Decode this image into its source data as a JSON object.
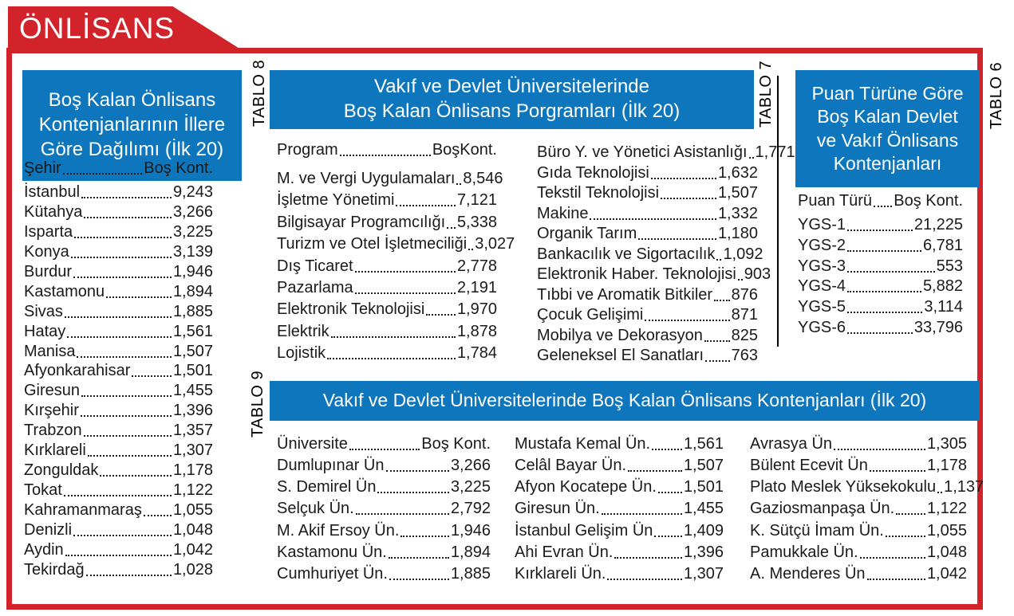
{
  "banner": {
    "title": "ÖNLİSANS"
  },
  "colors": {
    "red": "#d2232a",
    "blue": "#0e76bd",
    "text": "#1a1a1a"
  },
  "tables": {
    "cities": {
      "title": "Boş Kalan Önlisans\nKontenjanlarının İllere\nGöre Dağılımı (İlk 20)",
      "col_header": {
        "name": "Şehir",
        "value": "Boş Kont."
      },
      "rows": [
        [
          "İstanbul",
          "9,243"
        ],
        [
          "Kütahya",
          "3,266"
        ],
        [
          "Isparta",
          "3,225"
        ],
        [
          "Konya",
          "3,139"
        ],
        [
          "Burdur",
          "1,946"
        ],
        [
          "Kastamonu",
          "1,894"
        ],
        [
          "Sivas",
          "1,885"
        ],
        [
          "Hatay",
          "1,561"
        ],
        [
          "Manisa",
          "1,507"
        ],
        [
          "Afyonkarahisar",
          "1,501"
        ],
        [
          "Giresun",
          "1,455"
        ],
        [
          "Kırşehir",
          "1,396"
        ],
        [
          "Trabzon",
          "1,357"
        ],
        [
          "Kırklareli",
          "1,307"
        ],
        [
          "Zonguldak",
          "1,178"
        ],
        [
          "Tokat",
          "1,122"
        ],
        [
          "Kahramanmaraş",
          "1,055"
        ],
        [
          "Denizli",
          "1,048"
        ],
        [
          "Aydin",
          "1,042"
        ],
        [
          "Tekirdağ",
          "1,028"
        ]
      ]
    },
    "programs": {
      "tablo_label": "TABLO 8",
      "title": "Vakıf ve Devlet Üniversitelerinde\nBoş Kalan Önlisans Porgramları (İlk 20)",
      "col_header": {
        "name": "Program",
        "value": "BoşKont."
      },
      "left_rows": [
        [
          "M. ve Vergi Uygulamaları",
          "8,546"
        ],
        [
          "İşletme Yönetimi",
          "7,121"
        ],
        [
          "Bilgisayar Programcılığı",
          "5,338"
        ],
        [
          "Turizm ve Otel İşletmeciliği",
          "3,027"
        ],
        [
          "Dış Ticaret",
          "2,778"
        ],
        [
          "Pazarlama",
          "2,191"
        ],
        [
          "Elektronik Teknolojisi",
          "1,970"
        ],
        [
          "Elektrik",
          "1,878"
        ],
        [
          "Lojistik",
          "1,784"
        ]
      ],
      "right_rows": [
        [
          "Büro Y. ve Yönetici Asistanlığı",
          "1,771"
        ],
        [
          "Gıda Teknolojisi",
          "1,632"
        ],
        [
          "Tekstil Teknolojisi",
          "1,507"
        ],
        [
          "Makine",
          "1,332"
        ],
        [
          "Organik Tarım",
          "1,180"
        ],
        [
          "Bankacılık ve Sigortacılık",
          "1,092"
        ],
        [
          "Elektronik Haber. Teknolojisi",
          "903"
        ],
        [
          "Tıbbi ve Aromatik Bitkiler",
          "876"
        ],
        [
          "Çocuk Gelişimi",
          "871"
        ],
        [
          "Mobilya ve Dekorasyon",
          "825"
        ],
        [
          "Geleneksel El Sanatları",
          "763"
        ]
      ]
    },
    "puan": {
      "tablo_label_left": "TABLO 7",
      "tablo_label_right": "TABLO 6",
      "title": "Puan Türüne Göre\nBoş Kalan Devlet\nve Vakıf Önlisans\nKontenjanları",
      "col_header": {
        "name": "Puan Türü",
        "value": "Boş Kont."
      },
      "rows": [
        [
          "YGS-1",
          "21,225"
        ],
        [
          "YGS-2",
          "6,781"
        ],
        [
          "YGS-3",
          "553"
        ],
        [
          "YGS-4",
          "5,882"
        ],
        [
          "YGS-5",
          "3,114"
        ],
        [
          "YGS-6",
          "33,796"
        ]
      ]
    },
    "universities": {
      "tablo_label": "TABLO 9",
      "title": "Vakıf ve Devlet Üniversitelerinde Boş Kalan Önlisans Kontenjanları (İlk 20)",
      "col_header": {
        "name": "Üniversite",
        "value": "Boş Kont."
      },
      "col1_rows": [
        [
          "Dumlupınar Ün",
          "3,266"
        ],
        [
          "S. Demirel Ün",
          "3,225"
        ],
        [
          "Selçuk Ün.",
          "2,792"
        ],
        [
          "M. Akif Ersoy Ün.",
          "1,946"
        ],
        [
          "Kastamonu Ün.",
          "1,894"
        ],
        [
          "Cumhuriyet Ün.",
          "1,885"
        ]
      ],
      "col2_rows": [
        [
          "Mustafa Kemal Ün.",
          "1,561"
        ],
        [
          "Celâl Bayar Ün.",
          "1,507"
        ],
        [
          "Afyon Kocatepe Ün.",
          "1,501"
        ],
        [
          "Giresun Ün.",
          "1,455"
        ],
        [
          "İstanbul Gelişim Ün",
          "1,409"
        ],
        [
          "Ahi Evran Ün.",
          "1,396"
        ],
        [
          "Kırklareli Ün.",
          "1,307"
        ]
      ],
      "col3_rows": [
        [
          "Avrasya Ün",
          "1,305"
        ],
        [
          "Bülent Ecevit Ün",
          "1,178"
        ],
        [
          "Plato Meslek Yüksekokulu",
          "1,137"
        ],
        [
          "Gaziosmanpaşa Ün.",
          "1,122"
        ],
        [
          "K. Sütçü İmam Ün.",
          "1,055"
        ],
        [
          "Pamukkale Ün.",
          "1,048"
        ],
        [
          "A. Menderes Ün",
          "1,042"
        ]
      ]
    }
  }
}
